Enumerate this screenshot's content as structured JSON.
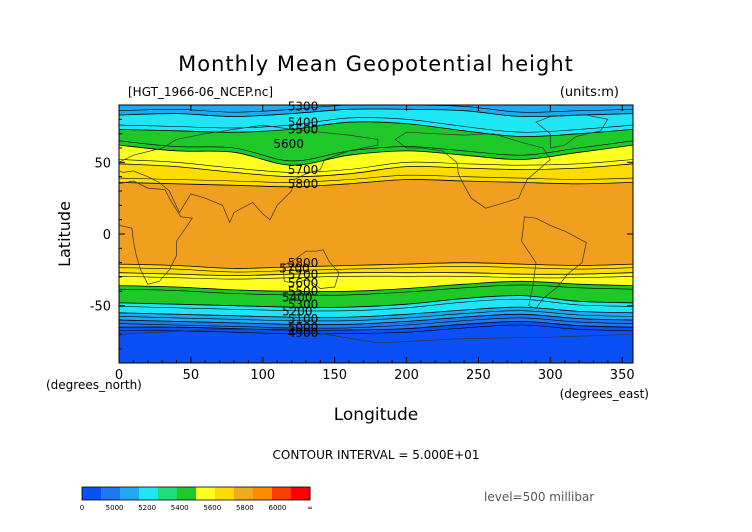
{
  "chart_data": {
    "type": "contour",
    "title": "Monthly Mean Geopotential height",
    "subtitle_left": "[HGT_1966-06_NCEP.nc]",
    "subtitle_right": "(units:m)",
    "xlabel": "Longitude",
    "ylabel": "Latitude",
    "x_unit": "(degrees_east)",
    "y_unit": "(degrees_north)",
    "xlim": [
      0,
      357.5
    ],
    "ylim": [
      -90,
      90
    ],
    "x_ticks": [
      0,
      50,
      100,
      150,
      200,
      250,
      300,
      350
    ],
    "y_ticks": [
      -50,
      0,
      50
    ],
    "contour_interval_label": "CONTOUR INTERVAL = 5.000E+01",
    "level_label": "level=500 millibar",
    "colorbar_ticks": [
      "0",
      "5000",
      "5200",
      "5400",
      "5600",
      "5800",
      "6000",
      "∞"
    ],
    "colorbar_colors": [
      "#0a50f5",
      "#1e78f0",
      "#1eaaf0",
      "#1ee6f5",
      "#1edc78",
      "#1ec828",
      "#ffff1e",
      "#ffdc00",
      "#f0aa1e",
      "#ff8c00",
      "#ff3c00",
      "#ff0000"
    ],
    "bands": [
      {
        "range": "5800-6000",
        "color": "#f0a01e"
      },
      {
        "range": "5750-5800",
        "color": "#ffdc00"
      },
      {
        "range": "5700-5750",
        "color": "#ffff1e"
      },
      {
        "range": "5500-5700",
        "color": "#1ec828"
      },
      {
        "range": "5300-5500",
        "color": "#1ee6f5"
      },
      {
        "range": "5200-5300",
        "color": "#1eaaf0"
      },
      {
        "range": "5000-5200",
        "color": "#1e78f0"
      },
      {
        "range": "0-5000",
        "color": "#0a50f5"
      }
    ],
    "north_boundaries": [
      {
        "value": 5300,
        "lat": [
          83,
          84,
          82,
          84,
          87,
          87,
          86,
          82,
          83,
          84
        ]
      },
      {
        "value": 5500,
        "lat": [
          73,
          72,
          71,
          73,
          78,
          77,
          72,
          68,
          70,
          73
        ]
      },
      {
        "value": 5700,
        "lat": [
          62,
          58,
          57,
          48,
          55,
          58,
          55,
          52,
          57,
          62
        ]
      },
      {
        "value": 5750,
        "lat": [
          49,
          47,
          43,
          40,
          42,
          47,
          46,
          45,
          46,
          49
        ]
      },
      {
        "value": 5800,
        "lat": [
          36,
          35,
          34,
          33,
          35,
          38,
          37,
          36,
          35,
          36
        ]
      }
    ],
    "south_boundaries": [
      {
        "value": 5800,
        "lat": [
          -21,
          -22,
          -24,
          -23,
          -22,
          -21,
          -20,
          -21,
          -22,
          -21
        ]
      },
      {
        "value": 5750,
        "lat": [
          -27,
          -28,
          -29,
          -28,
          -27,
          -27,
          -27,
          -28,
          -28,
          -27
        ]
      },
      {
        "value": 5700,
        "lat": [
          -36,
          -37,
          -39,
          -40,
          -40,
          -38,
          -35,
          -33,
          -35,
          -36
        ]
      },
      {
        "value": 5500,
        "lat": [
          -48,
          -49,
          -50,
          -51,
          -51,
          -49,
          -45,
          -43,
          -47,
          -48
        ]
      },
      {
        "value": 5300,
        "lat": [
          -55,
          -56,
          -57,
          -58,
          -58,
          -56,
          -53,
          -51,
          -54,
          -55
        ]
      },
      {
        "value": 5200,
        "lat": [
          -60,
          -61,
          -62,
          -63,
          -63,
          -61,
          -58,
          -56,
          -59,
          -60
        ]
      },
      {
        "value": 5000,
        "lat": [
          -65,
          -65,
          -66,
          -67,
          -67,
          -66,
          -63,
          -61,
          -64,
          -65
        ]
      }
    ],
    "boundary_lons": [
      0,
      40,
      80,
      120,
      160,
      200,
      240,
      280,
      320,
      357.5
    ],
    "contour_labels": [
      {
        "text": "5300",
        "lon": 128,
        "lat": 86
      },
      {
        "text": "5400",
        "lon": 128,
        "lat": 75
      },
      {
        "text": "5500",
        "lon": 128,
        "lat": 70
      },
      {
        "text": "5600",
        "lon": 118,
        "lat": 60
      },
      {
        "text": "5700",
        "lon": 128,
        "lat": 42
      },
      {
        "text": "5800",
        "lon": 128,
        "lat": 32
      },
      {
        "text": "5800",
        "lon": 128,
        "lat": -23
      },
      {
        "text": "5700",
        "lon": 122,
        "lat": -27
      },
      {
        "text": "5700",
        "lon": 128,
        "lat": -31
      },
      {
        "text": "5600",
        "lon": 128,
        "lat": -37
      },
      {
        "text": "5500",
        "lon": 128,
        "lat": -43
      },
      {
        "text": "5400",
        "lon": 124,
        "lat": -47
      },
      {
        "text": "5300",
        "lon": 128,
        "lat": -52
      },
      {
        "text": "5200",
        "lon": 124,
        "lat": -57
      },
      {
        "text": "5100",
        "lon": 128,
        "lat": -62
      },
      {
        "text": "5000",
        "lon": 128,
        "lat": -68
      },
      {
        "text": "4900",
        "lon": 128,
        "lat": -72
      }
    ]
  }
}
